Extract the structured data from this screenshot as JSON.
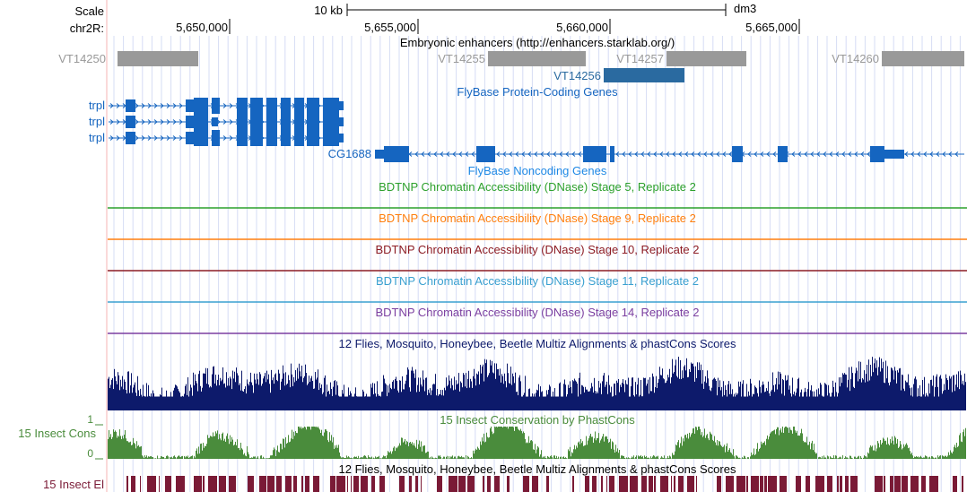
{
  "header": {
    "scale_label": "Scale",
    "chrom_label": "chr2R:",
    "scale_bar_label": "10 kb",
    "assembly": "dm3",
    "positions": [
      "5,650,000",
      "5,655,000",
      "5,660,000",
      "5,665,000"
    ]
  },
  "tracks": {
    "enhancers": {
      "title": "Embryonic enhancers (http://enhancers.starklab.org/)",
      "color": "#999999",
      "items": [
        {
          "label": "VT14250",
          "shade": "#999999"
        },
        {
          "label": "VT14255",
          "shade": "#999999"
        },
        {
          "label": "VT14257",
          "shade": "#999999"
        },
        {
          "label": "VT14256",
          "shade": "#2a6aa0"
        },
        {
          "label": "VT14260",
          "shade": "#999999"
        }
      ]
    },
    "coding_genes": {
      "title": "FlyBase Protein-Coding Genes",
      "color": "#1565c0",
      "genes": [
        "trpl",
        "trpl",
        "trpl",
        "CG1688"
      ]
    },
    "noncoding_genes": {
      "title": "FlyBase Noncoding Genes",
      "color": "#1e88e5"
    },
    "dnase": [
      {
        "title": "BDTNP Chromatin Accessibility (DNase) Stage 5, Replicate 2",
        "color": "#2ca02c"
      },
      {
        "title": "BDTNP Chromatin Accessibility (DNase) Stage 9, Replicate 2",
        "color": "#ff7f0e"
      },
      {
        "title": "BDTNP Chromatin Accessibility (DNase) Stage 10, Replicate 2",
        "color": "#8c1c24"
      },
      {
        "title": "BDTNP Chromatin Accessibility (DNase) Stage 11, Replicate 2",
        "color": "#3aa0d0"
      },
      {
        "title": "BDTNP Chromatin Accessibility (DNase) Stage 14, Replicate 2",
        "color": "#7b3fa0"
      }
    ],
    "multiz": {
      "title": "12 Flies, Mosquito, Honeybee, Beetle Multiz Alignments & phastCons Scores",
      "color": "#0d1a6b"
    },
    "cons": {
      "title": "15 Insect Conservation by PhastCons",
      "side_label": "15 Insect Cons",
      "max_label": "1",
      "min_label": "0",
      "color": "#4a8c3c"
    },
    "elements": {
      "title": "12 Flies, Mosquito, Honeybee, Beetle Multiz Alignments & phastCons Scores",
      "side_label": "15 Insect El",
      "color": "#7a1a36"
    }
  }
}
